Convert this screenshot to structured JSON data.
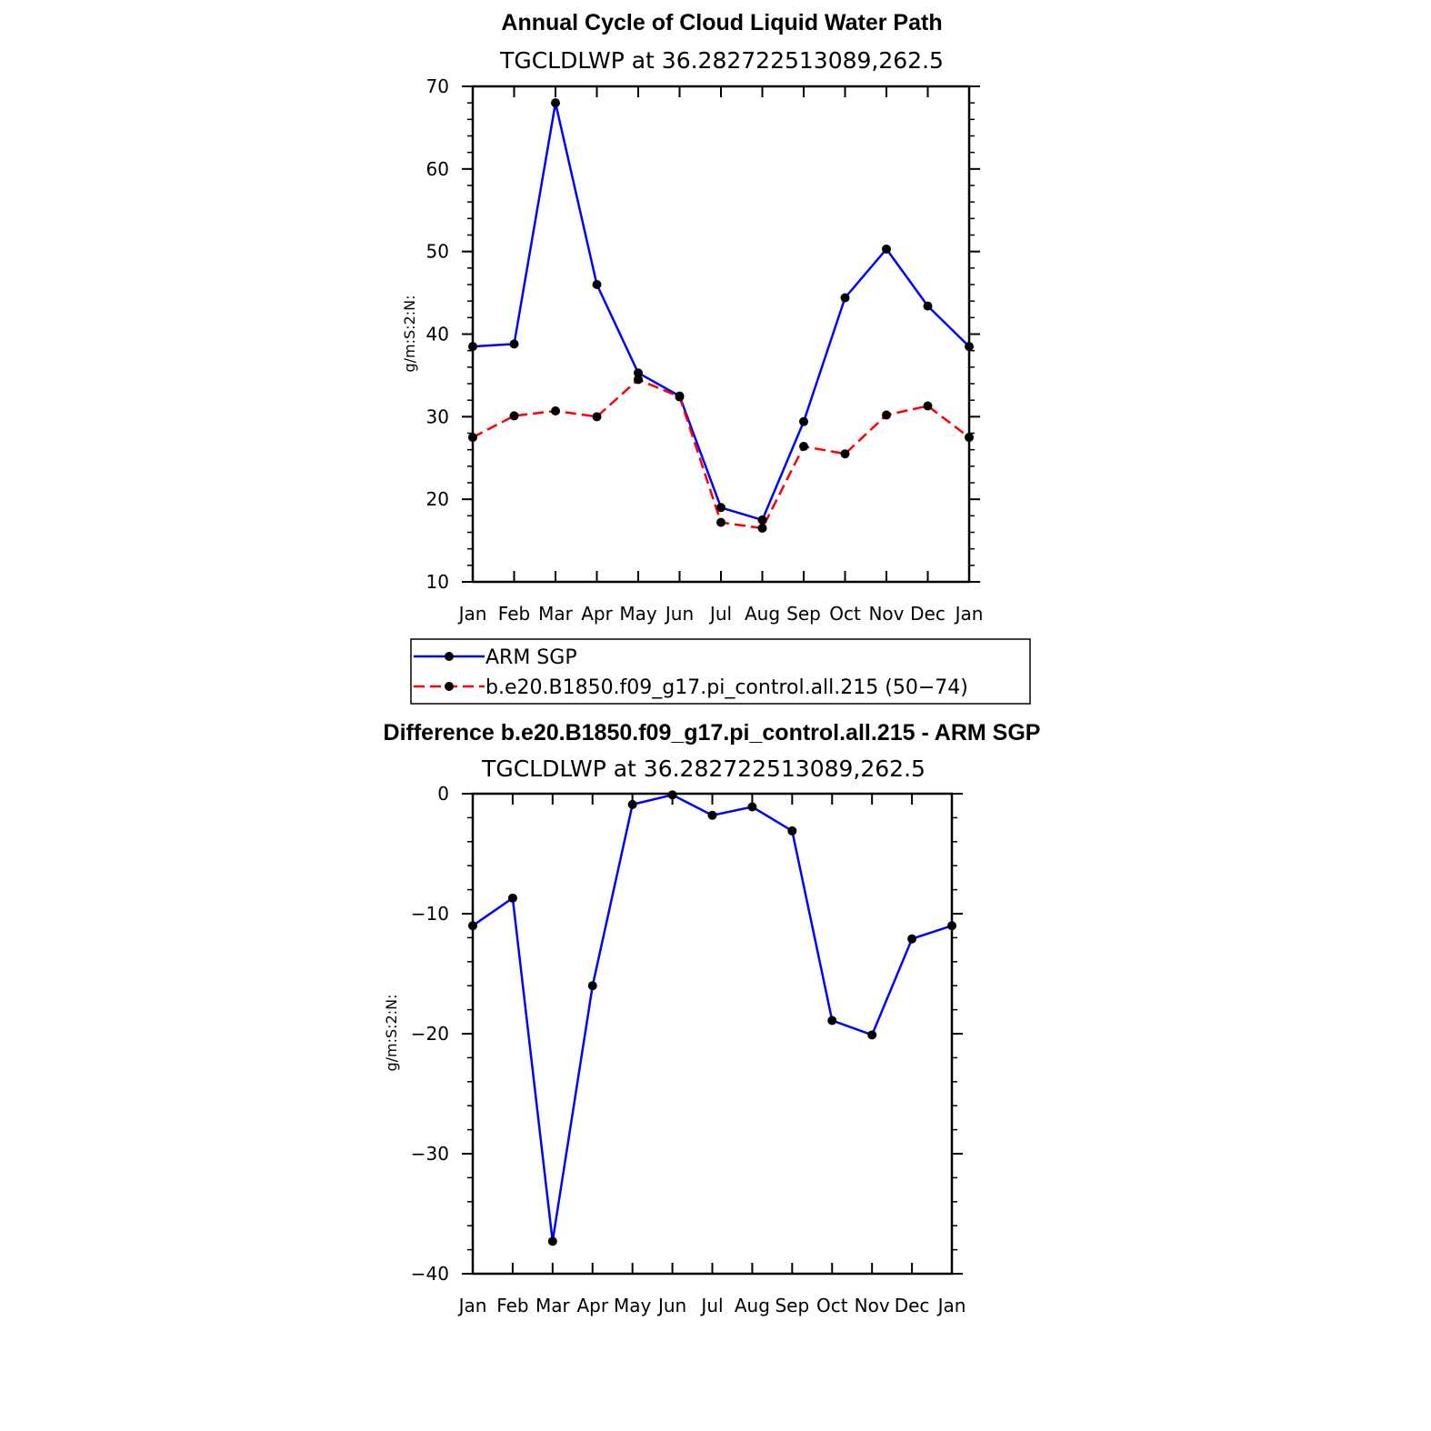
{
  "chart_data": [
    {
      "type": "line",
      "title": "Annual Cycle of Cloud Liquid Water Path",
      "subtitle": "TGCLDLWP  at  36.282722513089,262.5",
      "ylabel": "g/m:S:2:N:",
      "categories": [
        "Jan",
        "Feb",
        "Mar",
        "Apr",
        "May",
        "Jun",
        "Jul",
        "Aug",
        "Sep",
        "Oct",
        "Nov",
        "Dec",
        "Jan"
      ],
      "ylim": [
        10,
        70
      ],
      "yticks": [
        "10",
        "20",
        "30",
        "40",
        "50",
        "60",
        "70"
      ],
      "series": [
        {
          "name": "ARM SGP",
          "color": "#0000ff",
          "dashed": false,
          "values": [
            38.5,
            38.8,
            68.0,
            46.0,
            35.3,
            32.5,
            19.0,
            17.5,
            29.4,
            44.4,
            50.3,
            43.4,
            38.5
          ]
        },
        {
          "name": "b.e20.B1850.f09_g17.pi_control.all.215 (50−74)",
          "color": "#ff0000",
          "dashed": true,
          "values": [
            27.5,
            30.1,
            30.7,
            30.0,
            34.5,
            32.4,
            17.2,
            16.5,
            26.4,
            25.5,
            30.2,
            31.3,
            27.5
          ]
        }
      ],
      "legend": "below"
    },
    {
      "type": "line",
      "title": "Difference b.e20.B1850.f09_g17.pi_control.all.215 - ARM SGP",
      "subtitle": "TGCLDLWP  at  36.282722513089,262.5",
      "ylabel": "g/m:S:2:N:",
      "categories": [
        "Jan",
        "Feb",
        "Mar",
        "Apr",
        "May",
        "Jun",
        "Jul",
        "Aug",
        "Sep",
        "Oct",
        "Nov",
        "Dec",
        "Jan"
      ],
      "ylim": [
        -40,
        0
      ],
      "yticks": [
        "−40",
        "−30",
        "−20",
        "−10",
        "0"
      ],
      "series": [
        {
          "color": "#0000ff",
          "dashed": false,
          "values": [
            -11.0,
            -8.7,
            -37.3,
            -16.0,
            -0.9,
            -0.1,
            -1.8,
            -1.1,
            -3.1,
            -18.9,
            -20.1,
            -12.1,
            -11.0
          ]
        }
      ]
    }
  ]
}
